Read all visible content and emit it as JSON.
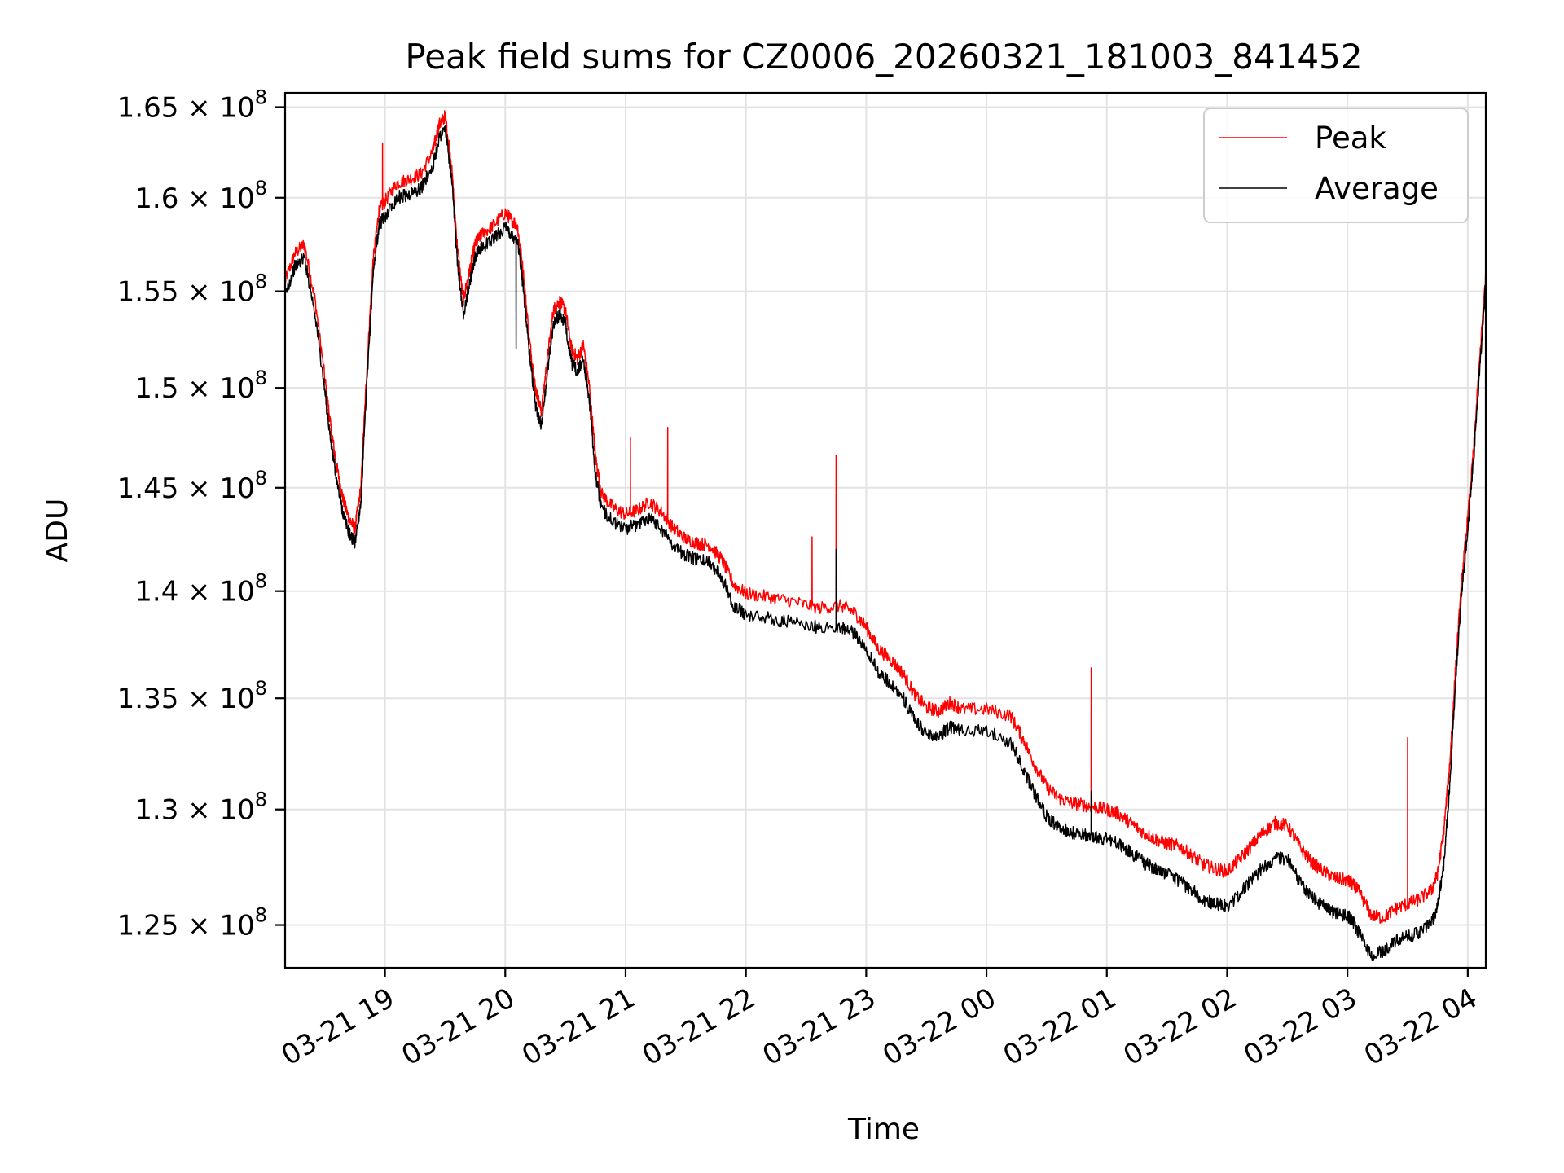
{
  "chart_data": {
    "type": "line",
    "title": "Peak field sums for CZ0006_20260321_181003_841452",
    "xlabel": "Time",
    "ylabel": "ADU",
    "xlim": [
      18.17,
      28.15
    ],
    "ylim": [
      123200000,
      165800000
    ],
    "y_scale": "log",
    "grid": true,
    "legend_position": "upper-right",
    "x_ticks": [
      {
        "value": 19,
        "label": "03-21 19"
      },
      {
        "value": 20,
        "label": "03-21 20"
      },
      {
        "value": 21,
        "label": "03-21 21"
      },
      {
        "value": 22,
        "label": "03-21 22"
      },
      {
        "value": 23,
        "label": "03-21 23"
      },
      {
        "value": 24,
        "label": "03-22 00"
      },
      {
        "value": 25,
        "label": "03-22 01"
      },
      {
        "value": 26,
        "label": "03-22 02"
      },
      {
        "value": 27,
        "label": "03-22 03"
      },
      {
        "value": 28,
        "label": "03-22 04"
      }
    ],
    "y_ticks": [
      {
        "value": 125000000,
        "mantissa": "1.25",
        "base": "10",
        "exp": "8"
      },
      {
        "value": 130000000,
        "mantissa": "1.3",
        "base": "10",
        "exp": "8"
      },
      {
        "value": 135000000,
        "mantissa": "1.35",
        "base": "10",
        "exp": "8"
      },
      {
        "value": 140000000,
        "mantissa": "1.4",
        "base": "10",
        "exp": "8"
      },
      {
        "value": 145000000,
        "mantissa": "1.45",
        "base": "10",
        "exp": "8"
      },
      {
        "value": 150000000,
        "mantissa": "1.5",
        "base": "10",
        "exp": "8"
      },
      {
        "value": 155000000,
        "mantissa": "1.55",
        "base": "10",
        "exp": "8"
      },
      {
        "value": 160000000,
        "mantissa": "1.6",
        "base": "10",
        "exp": "8"
      },
      {
        "value": 165000000,
        "mantissa": "1.65",
        "base": "10",
        "exp": "8"
      }
    ],
    "x_unit_note": "hours since 2026-03-21 00:00",
    "series": [
      {
        "name": "Peak",
        "color": "#ff0000",
        "x": [
          18.17,
          18.25,
          18.33,
          18.42,
          18.5,
          18.55,
          18.6,
          18.65,
          18.7,
          18.75,
          18.8,
          18.85,
          18.9,
          18.95,
          19.0,
          19.1,
          19.2,
          19.3,
          19.4,
          19.45,
          19.5,
          19.55,
          19.6,
          19.65,
          19.7,
          19.75,
          19.8,
          19.9,
          20.0,
          20.05,
          20.1,
          20.15,
          20.2,
          20.25,
          20.3,
          20.35,
          20.4,
          20.45,
          20.5,
          20.55,
          20.6,
          20.65,
          20.7,
          20.75,
          20.8,
          20.9,
          21.0,
          21.1,
          21.2,
          21.3,
          21.4,
          21.5,
          21.6,
          21.7,
          21.8,
          21.9,
          22.0,
          22.2,
          22.4,
          22.6,
          22.8,
          22.9,
          23.0,
          23.1,
          23.2,
          23.3,
          23.4,
          23.5,
          23.6,
          23.7,
          23.8,
          24.0,
          24.2,
          24.3,
          24.4,
          24.5,
          24.6,
          24.7,
          24.8,
          24.9,
          25.0,
          25.1,
          25.2,
          25.3,
          25.4,
          25.5,
          25.6,
          25.7,
          25.8,
          25.9,
          26.0,
          26.1,
          26.2,
          26.3,
          26.4,
          26.5,
          26.6,
          26.7,
          26.8,
          26.9,
          27.0,
          27.05,
          27.1,
          27.2,
          27.3,
          27.4,
          27.5,
          27.6,
          27.7,
          27.75,
          27.8,
          27.85,
          27.9,
          27.95,
          28.0,
          28.05,
          28.1,
          28.15
        ],
        "y": [
          155500000,
          157000000,
          157500000,
          154500000,
          150500000,
          148000000,
          146000000,
          144500000,
          143500000,
          143000000,
          145000000,
          151000000,
          156500000,
          159300000,
          159800000,
          160800000,
          161000000,
          161300000,
          162600000,
          164000000,
          164500000,
          162000000,
          157500000,
          154500000,
          156000000,
          157500000,
          158000000,
          158500000,
          159200000,
          158800000,
          158500000,
          156000000,
          152500000,
          150000000,
          148800000,
          151500000,
          154000000,
          154500000,
          154000000,
          152000000,
          151500000,
          152200000,
          150000000,
          146500000,
          144700000,
          144000000,
          143700000,
          143900000,
          144300000,
          143800000,
          143000000,
          142500000,
          142300000,
          142200000,
          141500000,
          140300000,
          139900000,
          139700000,
          139500000,
          139200000,
          139300000,
          139000000,
          138300000,
          137300000,
          136800000,
          136200000,
          135200000,
          134600000,
          134400000,
          134800000,
          134500000,
          134500000,
          134200000,
          133200000,
          132000000,
          131000000,
          130500000,
          130300000,
          130200000,
          130100000,
          130000000,
          129800000,
          129400000,
          129000000,
          128700000,
          128500000,
          128400000,
          128000000,
          127600000,
          127400000,
          127300000,
          127800000,
          128400000,
          129000000,
          129400000,
          129300000,
          128400000,
          127700000,
          127300000,
          127000000,
          126900000,
          126700000,
          126400000,
          125400000,
          125300000,
          125700000,
          125900000,
          126100000,
          126500000,
          127200000,
          129000000,
          132000000,
          136500000,
          140500000,
          143500000,
          147000000,
          151500000,
          156000000
        ],
        "spikes": [
          {
            "x": 18.98,
            "y": 163000000
          },
          {
            "x": 21.04,
            "y": 147500000
          },
          {
            "x": 21.35,
            "y": 148000000
          },
          {
            "x": 22.55,
            "y": 142600000
          },
          {
            "x": 22.75,
            "y": 146600000
          },
          {
            "x": 24.87,
            "y": 136400000
          },
          {
            "x": 27.5,
            "y": 133200000
          }
        ]
      },
      {
        "name": "Average",
        "color": "#000000",
        "x": [
          18.17,
          18.25,
          18.33,
          18.42,
          18.5,
          18.55,
          18.6,
          18.65,
          18.7,
          18.75,
          18.8,
          18.85,
          18.9,
          18.95,
          19.0,
          19.1,
          19.2,
          19.3,
          19.4,
          19.45,
          19.5,
          19.55,
          19.6,
          19.65,
          19.7,
          19.75,
          19.8,
          19.9,
          20.0,
          20.05,
          20.1,
          20.15,
          20.2,
          20.25,
          20.3,
          20.35,
          20.4,
          20.45,
          20.5,
          20.55,
          20.6,
          20.65,
          20.7,
          20.75,
          20.8,
          20.9,
          21.0,
          21.1,
          21.2,
          21.3,
          21.4,
          21.5,
          21.6,
          21.7,
          21.8,
          21.9,
          22.0,
          22.2,
          22.4,
          22.6,
          22.8,
          22.9,
          23.0,
          23.1,
          23.2,
          23.3,
          23.4,
          23.5,
          23.6,
          23.7,
          23.8,
          24.0,
          24.2,
          24.3,
          24.4,
          24.5,
          24.6,
          24.7,
          24.8,
          24.9,
          25.0,
          25.1,
          25.2,
          25.3,
          25.4,
          25.5,
          25.6,
          25.7,
          25.8,
          25.9,
          26.0,
          26.1,
          26.2,
          26.3,
          26.4,
          26.5,
          26.6,
          26.7,
          26.8,
          26.9,
          27.0,
          27.05,
          27.1,
          27.2,
          27.3,
          27.4,
          27.5,
          27.6,
          27.7,
          27.75,
          27.8,
          27.85,
          27.9,
          27.95,
          28.0,
          28.05,
          28.1,
          28.15
        ],
        "y": [
          154800000,
          156300000,
          156800000,
          153800000,
          149800000,
          147300000,
          145300000,
          143800000,
          142800000,
          142300000,
          144300000,
          150200000,
          155800000,
          158500000,
          159000000,
          160000000,
          160200000,
          160500000,
          161800000,
          163300000,
          163800000,
          161300000,
          156800000,
          153800000,
          155300000,
          156800000,
          157300000,
          157800000,
          158400000,
          158000000,
          157800000,
          155200000,
          151800000,
          149200000,
          148000000,
          150800000,
          153300000,
          153800000,
          153300000,
          151300000,
          150800000,
          151500000,
          149300000,
          145600000,
          144000000,
          143300000,
          143000000,
          143200000,
          143600000,
          143000000,
          142200000,
          141700000,
          141500000,
          141400000,
          140700000,
          139300000,
          138900000,
          138700000,
          138500000,
          138300000,
          138300000,
          138000000,
          137300000,
          136200000,
          135700000,
          135100000,
          134000000,
          133400000,
          133300000,
          133700000,
          133500000,
          133500000,
          133000000,
          131900000,
          130700000,
          129700000,
          129200000,
          129000000,
          128900000,
          128800000,
          128700000,
          128500000,
          128100000,
          127700000,
          127400000,
          127200000,
          126900000,
          126500000,
          126100000,
          125900000,
          125800000,
          126300000,
          126900000,
          127500000,
          127900000,
          127800000,
          126900000,
          126200000,
          125800000,
          125500000,
          125400000,
          125100000,
          124600000,
          123700000,
          123900000,
          124300000,
          124500000,
          124700000,
          125100000,
          125800000,
          127600000,
          131000000,
          135800000,
          140000000,
          143000000,
          146500000,
          151000000,
          155500000
        ],
        "spikes": [
          {
            "x": 20.09,
            "y": 152000000
          },
          {
            "x": 22.75,
            "y": 142000000
          },
          {
            "x": 24.87,
            "y": 130800000
          }
        ]
      }
    ]
  }
}
